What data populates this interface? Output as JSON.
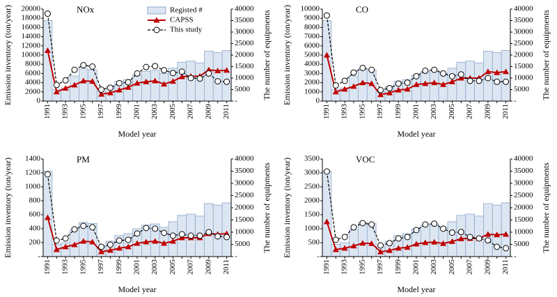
{
  "chart_data": [
    {
      "type": "bar-line",
      "title": "NOx",
      "xlabel": "Model year",
      "ylabel": "Emission inventory (ton/year)",
      "y2label": "The number of equipments",
      "legend": "top",
      "categories": [
        "1991",
        null,
        "1993",
        null,
        "1995",
        null,
        "1997",
        null,
        "1999",
        null,
        "2001",
        null,
        "2003",
        null,
        "2005",
        null,
        "2007",
        null,
        "2009",
        null,
        "2011"
      ],
      "ylim": [
        0,
        20000
      ],
      "yticks": [
        0,
        2000,
        4000,
        6000,
        8000,
        10000,
        12000,
        14000,
        16000,
        18000,
        20000
      ],
      "y2lim": [
        0,
        40000
      ],
      "y2ticks": [
        {
          "value": 0,
          "label": "-"
        },
        5000,
        10000,
        15000,
        20000,
        25000,
        30000,
        35000,
        40000
      ],
      "series": [
        {
          "name": "Registed #",
          "color": "#dce6f2",
          "axis": "y2",
          "values": [
            35000,
            5000,
            5700,
            10900,
            14000,
            13600,
            4000,
            6300,
            8600,
            9400,
            11400,
            12900,
            13400,
            12000,
            14300,
            16900,
            17400,
            16600,
            21700,
            21100,
            22000
          ]
        },
        {
          "name": "CAPSS",
          "color": "#c00000",
          "values": [
            11000,
            2000,
            2800,
            3500,
            4400,
            4300,
            1500,
            1800,
            2400,
            3000,
            3900,
            4200,
            4400,
            3700,
            4300,
            5300,
            5400,
            5400,
            6800,
            6600,
            6700
          ]
        },
        {
          "name": "This study",
          "color": "#000000",
          "values": [
            19000,
            3500,
            4500,
            6800,
            7800,
            7500,
            2500,
            2900,
            3900,
            4100,
            6000,
            7400,
            7600,
            6700,
            6100,
            6400,
            5000,
            4900,
            6000,
            4300,
            4200
          ]
        }
      ]
    },
    {
      "type": "bar-line",
      "title": "CO",
      "xlabel": "Model year",
      "ylabel": "Emission inventory (ton/year)",
      "y2label": "The number of equipments",
      "categories": [
        "1991",
        null,
        "1993",
        null,
        "1995",
        null,
        "1997",
        null,
        "1999",
        null,
        "2001",
        null,
        "2003",
        null,
        "2005",
        null,
        "2007",
        null,
        "2009",
        null,
        "2011"
      ],
      "ylim": [
        0,
        10000
      ],
      "yticks": [
        0,
        1000,
        2000,
        3000,
        4000,
        5000,
        6000,
        7000,
        8000,
        9000,
        10000
      ],
      "y2lim": [
        0,
        40000
      ],
      "y2ticks": [
        {
          "value": 0,
          "label": "-"
        },
        5000,
        10000,
        15000,
        20000,
        25000,
        30000,
        35000,
        40000
      ],
      "series": [
        {
          "color": "#dce6f2",
          "axis": "y2",
          "values": [
            35000,
            5000,
            5700,
            10900,
            14000,
            13600,
            4000,
            6300,
            8600,
            9400,
            11400,
            12900,
            13400,
            12000,
            14300,
            16900,
            17400,
            16600,
            21700,
            21100,
            22000
          ]
        },
        {
          "color": "#c00000",
          "values": [
            5000,
            1000,
            1300,
            1600,
            2000,
            1900,
            700,
            900,
            1200,
            1300,
            1800,
            1900,
            2000,
            1800,
            2100,
            2500,
            2500,
            2500,
            3200,
            3100,
            3200
          ]
        },
        {
          "color": "#000000",
          "values": [
            9300,
            1700,
            2200,
            3100,
            3600,
            3400,
            1200,
            1400,
            1900,
            2000,
            2700,
            3300,
            3400,
            3000,
            2700,
            2900,
            2200,
            2200,
            2500,
            2100,
            2100
          ]
        }
      ]
    },
    {
      "type": "bar-line",
      "title": "PM",
      "xlabel": "Model year",
      "ylabel": "Emission inventory (ton/year)",
      "y2label": "The number of equipments",
      "categories": [
        "1991",
        null,
        "1993",
        null,
        "1995",
        null,
        "1997",
        null,
        "1999",
        null,
        "2001",
        null,
        "2003",
        null,
        "2005",
        null,
        "2007",
        null,
        "2009",
        null,
        "2011"
      ],
      "ylim": [
        0,
        1400
      ],
      "yticks": [
        {
          "value": 0,
          "label": "-"
        },
        200,
        400,
        600,
        800,
        1000,
        1200,
        1400
      ],
      "y2lim": [
        0,
        40000
      ],
      "y2ticks": [
        {
          "value": 0,
          "label": "-"
        },
        5000,
        10000,
        15000,
        20000,
        25000,
        30000,
        35000,
        40000
      ],
      "series": [
        {
          "color": "#dce6f2",
          "axis": "y2",
          "values": [
            35000,
            5000,
            5700,
            10900,
            14000,
            13600,
            4000,
            6300,
            8600,
            9400,
            11400,
            12900,
            13400,
            12000,
            14300,
            16900,
            17400,
            16600,
            21700,
            21100,
            22000
          ]
        },
        {
          "color": "#c00000",
          "values": [
            560,
            100,
            140,
            170,
            220,
            210,
            70,
            90,
            120,
            140,
            190,
            210,
            220,
            190,
            220,
            270,
            270,
            270,
            330,
            320,
            330
          ]
        },
        {
          "color": "#000000",
          "values": [
            1180,
            230,
            260,
            390,
            440,
            420,
            140,
            170,
            230,
            240,
            330,
            410,
            400,
            340,
            300,
            320,
            300,
            300,
            350,
            290,
            280
          ]
        }
      ]
    },
    {
      "type": "bar-line",
      "title": "VOC",
      "xlabel": "Model year",
      "ylabel": "Emission inventory (ton/year)",
      "y2label": "The number of equipments",
      "categories": [
        "1991",
        null,
        "1993",
        null,
        "1995",
        null,
        "1997",
        null,
        "1999",
        null,
        "2001",
        null,
        "2003",
        null,
        "2005",
        null,
        "2007",
        null,
        "2009",
        null,
        "2011"
      ],
      "ylim": [
        0,
        3500
      ],
      "yticks": [
        {
          "value": 0,
          "label": "-"
        },
        500,
        1000,
        1500,
        2000,
        2500,
        3000,
        3500
      ],
      "y2lim": [
        0,
        40000
      ],
      "y2ticks": [
        {
          "value": 0,
          "label": "-"
        },
        5000,
        10000,
        15000,
        20000,
        25000,
        30000,
        35000,
        40000
      ],
      "series": [
        {
          "color": "#dce6f2",
          "axis": "y2",
          "values": [
            35000,
            5000,
            5700,
            10900,
            14000,
            13600,
            4000,
            6300,
            8600,
            9400,
            11400,
            12900,
            13400,
            12000,
            14300,
            16900,
            17400,
            16600,
            21700,
            21100,
            22000
          ]
        },
        {
          "color": "#c00000",
          "values": [
            1250,
            250,
            300,
            380,
            480,
            470,
            170,
            220,
            300,
            330,
            450,
            500,
            520,
            470,
            540,
            640,
            650,
            650,
            800,
            780,
            800
          ]
        },
        {
          "color": "#000000",
          "values": [
            3050,
            600,
            700,
            1050,
            1200,
            1150,
            400,
            480,
            650,
            700,
            950,
            1150,
            1180,
            1000,
            860,
            880,
            700,
            650,
            580,
            350,
            300
          ]
        }
      ]
    }
  ]
}
